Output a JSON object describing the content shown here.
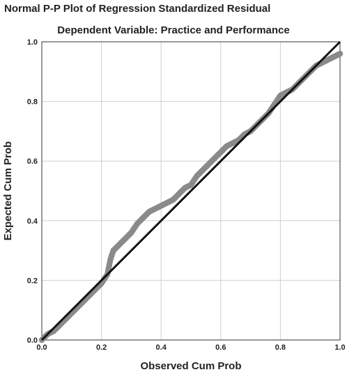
{
  "chart_data": {
    "type": "scatter",
    "title": "Normal P-P Plot of Regression Standardized Residual",
    "subtitle": "Dependent Variable: Practice and Performance",
    "xlabel": "Observed Cum Prob",
    "ylabel": "Expected Cum Prob",
    "xlim": [
      0,
      1
    ],
    "ylim": [
      0,
      1
    ],
    "x_ticks": [
      "0.0",
      "0.2",
      "0.4",
      "0.6",
      "0.8",
      "1.0"
    ],
    "y_ticks": [
      "0.0",
      "0.2",
      "0.4",
      "0.6",
      "0.8",
      "1.0"
    ],
    "grid": true,
    "legend": "none",
    "series": [
      {
        "type": "points",
        "color": "#8a8a8a",
        "x": [
          0.0,
          0.02,
          0.04,
          0.06,
          0.08,
          0.1,
          0.12,
          0.14,
          0.16,
          0.18,
          0.2,
          0.22,
          0.23,
          0.24,
          0.26,
          0.28,
          0.3,
          0.32,
          0.34,
          0.36,
          0.38,
          0.4,
          0.42,
          0.44,
          0.46,
          0.48,
          0.5,
          0.52,
          0.54,
          0.56,
          0.58,
          0.6,
          0.62,
          0.64,
          0.66,
          0.68,
          0.7,
          0.72,
          0.74,
          0.76,
          0.78,
          0.8,
          0.82,
          0.84,
          0.86,
          0.88,
          0.9,
          0.92,
          0.94,
          0.96,
          0.98,
          1.0
        ],
        "y": [
          0.0,
          0.02,
          0.03,
          0.05,
          0.07,
          0.09,
          0.11,
          0.13,
          0.15,
          0.17,
          0.19,
          0.22,
          0.27,
          0.3,
          0.32,
          0.34,
          0.36,
          0.39,
          0.41,
          0.43,
          0.44,
          0.45,
          0.46,
          0.47,
          0.49,
          0.51,
          0.52,
          0.55,
          0.57,
          0.59,
          0.61,
          0.63,
          0.65,
          0.66,
          0.67,
          0.69,
          0.7,
          0.72,
          0.74,
          0.76,
          0.79,
          0.82,
          0.83,
          0.84,
          0.86,
          0.88,
          0.9,
          0.92,
          0.93,
          0.94,
          0.95,
          0.96
        ]
      },
      {
        "type": "reference-line",
        "color": "#111111",
        "x": [
          0,
          1
        ],
        "y": [
          0,
          1
        ]
      }
    ]
  }
}
